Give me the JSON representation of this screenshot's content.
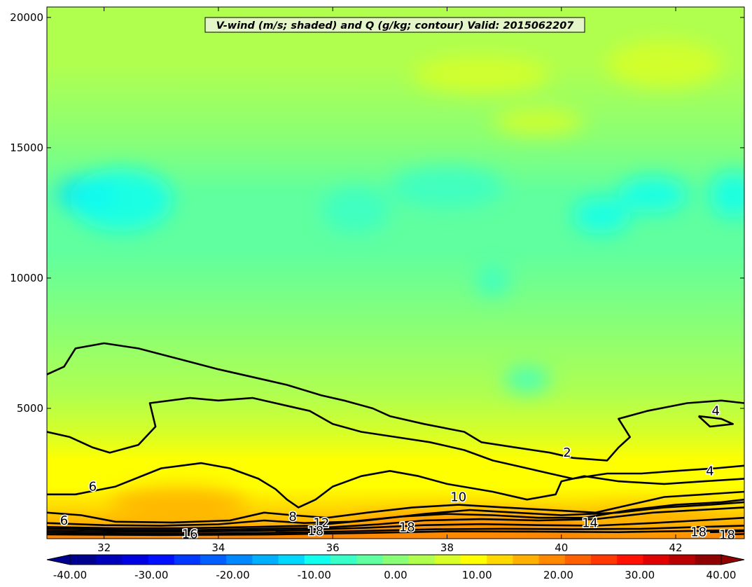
{
  "chart_data": {
    "type": "heatmap",
    "title": "V-wind (m/s; shaded) and Q (g/kg; contour) Valid: 2015062207",
    "xlabel": "",
    "ylabel": "",
    "xlim": [
      31.0,
      43.2
    ],
    "ylim": [
      0,
      20400
    ],
    "x_ticks": [
      32,
      34,
      36,
      38,
      40,
      42
    ],
    "y_ticks": [
      5000,
      10000,
      15000,
      20000
    ],
    "colorbar": {
      "min": -40.0,
      "max": 40.0,
      "ticks": [
        "-40.00",
        "-30.00",
        "-20.00",
        "-10.00",
        "0.00",
        "10.00",
        "20.00",
        "30.00",
        "40.00"
      ],
      "extend": "both",
      "colors": [
        "#00008f",
        "#0000b8",
        "#0000e0",
        "#0010ff",
        "#0038ff",
        "#0060ff",
        "#0088ff",
        "#00b0ff",
        "#00d8ff",
        "#10ffef",
        "#38ffc7",
        "#60ff9f",
        "#88ff77",
        "#b0ff4f",
        "#d8ff27",
        "#ffff00",
        "#ffd800",
        "#ffb000",
        "#ff8800",
        "#ff6000",
        "#ff3800",
        "#ff1000",
        "#e00000",
        "#b80000",
        "#8f0000"
      ]
    },
    "shading_bands": [
      {
        "y_max": 300,
        "v": 20
      },
      {
        "y_max": 800,
        "v": 16
      },
      {
        "y_max": 1500,
        "v": 14
      },
      {
        "y_max": 2500,
        "v": 11
      },
      {
        "y_max": 3500,
        "v": 8
      },
      {
        "y_max": 4500,
        "v": 5
      },
      {
        "y_max": 6500,
        "v": 2
      },
      {
        "y_max": 10000,
        "v": -1
      },
      {
        "y_max": 12000,
        "v": -4
      },
      {
        "y_max": 14500,
        "v": -4
      },
      {
        "y_max": 16000,
        "v": 0
      },
      {
        "y_max": 20400,
        "v": 3
      }
    ],
    "shading_blobs": [
      {
        "x": 31.7,
        "y": 13200,
        "rx": 0.5,
        "ry": 700,
        "v": -13
      },
      {
        "x": 32.3,
        "y": 13000,
        "rx": 0.9,
        "ry": 1200,
        "v": -9
      },
      {
        "x": 36.4,
        "y": 12600,
        "rx": 0.6,
        "ry": 900,
        "v": -8
      },
      {
        "x": 38.0,
        "y": 13500,
        "rx": 1.0,
        "ry": 800,
        "v": -7
      },
      {
        "x": 40.7,
        "y": 12400,
        "rx": 0.5,
        "ry": 700,
        "v": -9
      },
      {
        "x": 41.6,
        "y": 13200,
        "rx": 0.6,
        "ry": 700,
        "v": -9
      },
      {
        "x": 43.0,
        "y": 13200,
        "rx": 0.4,
        "ry": 900,
        "v": -10
      },
      {
        "x": 38.8,
        "y": 9900,
        "rx": 0.3,
        "ry": 600,
        "v": -7
      },
      {
        "x": 39.4,
        "y": 6100,
        "rx": 0.4,
        "ry": 500,
        "v": -7
      },
      {
        "x": 38.6,
        "y": 17800,
        "rx": 1.2,
        "ry": 700,
        "v": 7
      },
      {
        "x": 41.8,
        "y": 18200,
        "rx": 1.0,
        "ry": 900,
        "v": 7
      },
      {
        "x": 39.6,
        "y": 16000,
        "rx": 0.8,
        "ry": 500,
        "v": 6
      },
      {
        "x": 33.3,
        "y": 1300,
        "rx": 1.2,
        "ry": 700,
        "v": 17
      },
      {
        "x": 38.5,
        "y": 500,
        "rx": 2.2,
        "ry": 450,
        "v": 19
      },
      {
        "x": 41.5,
        "y": 700,
        "rx": 1.2,
        "ry": 500,
        "v": 17
      }
    ],
    "contours": [
      {
        "level": 2,
        "points": [
          [
            31.0,
            6300
          ],
          [
            31.3,
            6600
          ],
          [
            31.5,
            7300
          ],
          [
            32.0,
            7500
          ],
          [
            32.6,
            7300
          ],
          [
            33.3,
            6900
          ],
          [
            34.0,
            6500
          ],
          [
            34.6,
            6200
          ],
          [
            35.2,
            5900
          ],
          [
            35.8,
            5500
          ],
          [
            36.2,
            5300
          ],
          [
            36.7,
            5000
          ],
          [
            37.0,
            4700
          ],
          [
            37.6,
            4400
          ],
          [
            38.3,
            4100
          ],
          [
            38.6,
            3700
          ],
          [
            39.2,
            3500
          ],
          [
            39.8,
            3300
          ],
          [
            40.2,
            3100
          ],
          [
            40.8,
            3000
          ],
          [
            41.0,
            3500
          ],
          [
            41.2,
            3900
          ],
          [
            41.0,
            4600
          ],
          [
            41.5,
            4900
          ],
          [
            42.2,
            5200
          ],
          [
            42.8,
            5300
          ],
          [
            43.2,
            5200
          ]
        ],
        "label": {
          "x": 40.1,
          "y": 3300,
          "text": "2"
        }
      },
      {
        "level": 4,
        "points": [
          [
            31.0,
            4100
          ],
          [
            31.4,
            3900
          ],
          [
            31.8,
            3500
          ],
          [
            32.1,
            3300
          ],
          [
            32.6,
            3600
          ],
          [
            32.9,
            4300
          ],
          [
            32.8,
            5200
          ],
          [
            33.5,
            5400
          ],
          [
            34.0,
            5300
          ],
          [
            34.6,
            5400
          ],
          [
            35.2,
            5100
          ],
          [
            35.6,
            4900
          ],
          [
            36.0,
            4400
          ],
          [
            36.5,
            4100
          ],
          [
            37.1,
            3900
          ],
          [
            37.7,
            3700
          ],
          [
            38.3,
            3400
          ],
          [
            38.8,
            3000
          ],
          [
            39.4,
            2700
          ],
          [
            39.8,
            2500
          ],
          [
            40.2,
            2300
          ],
          [
            40.8,
            2500
          ],
          [
            41.4,
            2500
          ],
          [
            42.0,
            2600
          ],
          [
            42.7,
            2700
          ],
          [
            43.2,
            2800
          ]
        ],
        "label": {
          "x": 42.6,
          "y": 2600,
          "text": "4"
        }
      },
      {
        "level": 4,
        "points": [
          [
            42.4,
            4700
          ],
          [
            42.8,
            4600
          ],
          [
            43.0,
            4400
          ],
          [
            42.6,
            4300
          ],
          [
            42.4,
            4700
          ]
        ],
        "label": {
          "x": 42.7,
          "y": 4900,
          "text": "4"
        }
      },
      {
        "level": 6,
        "points": [
          [
            31.0,
            1700
          ],
          [
            31.5,
            1700
          ],
          [
            32.2,
            2000
          ],
          [
            33.0,
            2700
          ],
          [
            33.7,
            2900
          ],
          [
            34.2,
            2700
          ],
          [
            34.7,
            2300
          ],
          [
            35.0,
            1900
          ],
          [
            35.2,
            1500
          ],
          [
            35.4,
            1200
          ],
          [
            35.7,
            1500
          ],
          [
            36.0,
            2000
          ],
          [
            36.5,
            2400
          ],
          [
            37.0,
            2600
          ],
          [
            37.5,
            2400
          ],
          [
            38.0,
            2100
          ],
          [
            38.8,
            1800
          ],
          [
            39.4,
            1500
          ],
          [
            39.9,
            1700
          ],
          [
            40.0,
            2200
          ],
          [
            40.4,
            2400
          ],
          [
            41.0,
            2200
          ],
          [
            41.8,
            2100
          ],
          [
            42.5,
            2200
          ],
          [
            43.2,
            2300
          ]
        ],
        "label": {
          "x": 31.8,
          "y": 2000,
          "text": "6"
        }
      },
      {
        "level": 6,
        "points": [
          [
            31.0,
            1000
          ],
          [
            31.6,
            900
          ],
          [
            32.2,
            650
          ],
          [
            33.2,
            620
          ],
          [
            34.2,
            700
          ],
          [
            34.8,
            1000
          ],
          [
            35.3,
            900
          ],
          [
            35.9,
            800
          ],
          [
            36.6,
            1000
          ],
          [
            37.4,
            1200
          ],
          [
            38.2,
            1300
          ],
          [
            39.0,
            1200
          ],
          [
            39.8,
            1100
          ],
          [
            40.6,
            1000
          ],
          [
            41.2,
            1300
          ],
          [
            41.8,
            1600
          ],
          [
            42.5,
            1700
          ],
          [
            43.2,
            1800
          ]
        ],
        "label": {
          "x": 31.3,
          "y": 700,
          "text": "6"
        }
      },
      {
        "level": 8,
        "points": [
          [
            31.0,
            600
          ],
          [
            32.0,
            520
          ],
          [
            33.0,
            500
          ],
          [
            34.0,
            550
          ],
          [
            34.8,
            700
          ],
          [
            35.5,
            600
          ],
          [
            36.3,
            650
          ],
          [
            37.2,
            850
          ],
          [
            38.0,
            950
          ],
          [
            38.8,
            900
          ],
          [
            39.6,
            800
          ],
          [
            40.4,
            800
          ],
          [
            41.2,
            1100
          ],
          [
            42.0,
            1300
          ],
          [
            42.8,
            1400
          ],
          [
            43.2,
            1500
          ]
        ],
        "label": {
          "x": 35.3,
          "y": 850,
          "text": "8"
        }
      },
      {
        "level": 10,
        "points": [
          [
            31.0,
            450
          ],
          [
            32.2,
            400
          ],
          [
            33.4,
            400
          ],
          [
            34.6,
            450
          ],
          [
            35.6,
            500
          ],
          [
            36.6,
            700
          ],
          [
            37.6,
            950
          ],
          [
            38.4,
            1100
          ],
          [
            39.2,
            1000
          ],
          [
            40.0,
            900
          ],
          [
            41.0,
            1000
          ],
          [
            41.8,
            1200
          ],
          [
            42.6,
            1300
          ],
          [
            43.2,
            1400
          ]
        ],
        "label": {
          "x": 38.2,
          "y": 1600,
          "text": "10"
        }
      },
      {
        "level": 12,
        "points": [
          [
            31.0,
            380
          ],
          [
            32.4,
            330
          ],
          [
            33.6,
            330
          ],
          [
            34.8,
            380
          ],
          [
            35.8,
            420
          ],
          [
            36.8,
            550
          ],
          [
            37.6,
            700
          ],
          [
            38.6,
            750
          ],
          [
            39.6,
            700
          ],
          [
            40.6,
            750
          ],
          [
            41.6,
            1000
          ],
          [
            42.4,
            1100
          ],
          [
            43.2,
            1200
          ]
        ],
        "label": {
          "x": 35.8,
          "y": 600,
          "text": "12"
        }
      },
      {
        "level": 14,
        "points": [
          [
            31.0,
            300
          ],
          [
            32.5,
            270
          ],
          [
            34.0,
            280
          ],
          [
            35.4,
            330
          ],
          [
            36.6,
            420
          ],
          [
            37.6,
            520
          ],
          [
            38.6,
            560
          ],
          [
            39.6,
            520
          ],
          [
            40.6,
            500
          ],
          [
            41.6,
            600
          ],
          [
            42.4,
            700
          ],
          [
            43.2,
            800
          ]
        ],
        "label": {
          "x": 40.5,
          "y": 600,
          "text": "14"
        }
      },
      {
        "level": 16,
        "points": [
          [
            31.0,
            230
          ],
          [
            32.5,
            200
          ],
          [
            34.0,
            200
          ],
          [
            35.4,
            240
          ],
          [
            36.6,
            300
          ],
          [
            37.8,
            360
          ],
          [
            39.0,
            380
          ],
          [
            40.2,
            360
          ],
          [
            41.4,
            380
          ],
          [
            42.4,
            450
          ],
          [
            43.2,
            500
          ]
        ],
        "label": {
          "x": 33.5,
          "y": 180,
          "text": "16"
        }
      },
      {
        "level": 18,
        "points": [
          [
            31.0,
            160
          ],
          [
            33.0,
            140
          ],
          [
            35.0,
            160
          ],
          [
            36.6,
            220
          ],
          [
            38.0,
            280
          ],
          [
            39.6,
            270
          ],
          [
            41.0,
            250
          ],
          [
            42.4,
            300
          ],
          [
            43.2,
            320
          ]
        ],
        "label": {
          "x": 37.3,
          "y": 450,
          "text": "18"
        }
      },
      {
        "level": 18,
        "points": [
          [
            35.0,
            300
          ],
          [
            35.6,
            330
          ]
        ],
        "label": {
          "x": 35.7,
          "y": 300,
          "text": "18"
        }
      },
      {
        "level": 18,
        "points": [
          [
            42.6,
            250
          ],
          [
            43.2,
            280
          ]
        ],
        "label": {
          "x": 42.4,
          "y": 250,
          "text": "18"
        }
      },
      {
        "level": 18,
        "points": [
          [
            42.9,
            160
          ],
          [
            43.2,
            180
          ]
        ],
        "label": {
          "x": 42.9,
          "y": 150,
          "text": "18"
        }
      }
    ]
  }
}
